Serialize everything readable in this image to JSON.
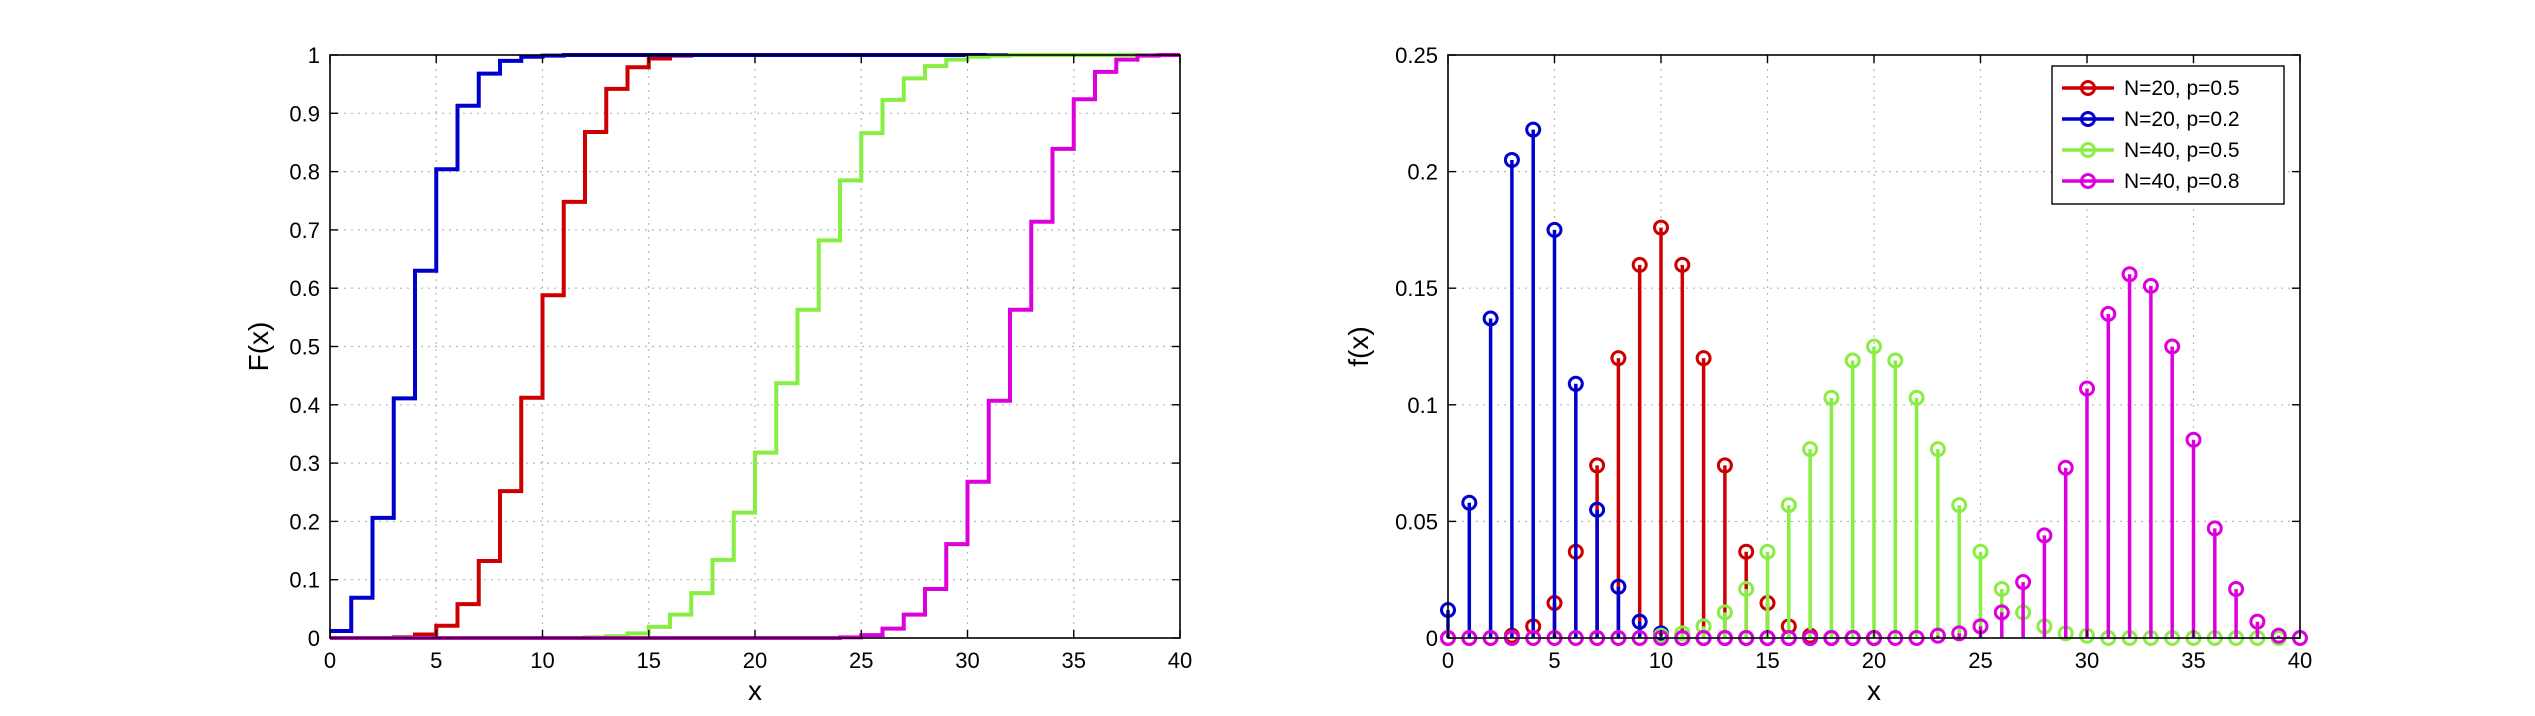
{
  "colors": {
    "red": "#cc0000",
    "blue": "#0000cc",
    "green": "#88ee44",
    "magenta": "#dd00dd"
  },
  "chart_data": [
    {
      "type": "line",
      "subtype": "step-cdf",
      "title": "",
      "xlabel": "x",
      "ylabel": "F(x)",
      "xlim": [
        0,
        40
      ],
      "ylim": [
        0,
        1
      ],
      "xticks": [
        0,
        5,
        10,
        15,
        20,
        25,
        30,
        35,
        40
      ],
      "yticks": [
        0,
        0.1,
        0.2,
        0.3,
        0.4,
        0.5,
        0.6,
        0.7,
        0.8,
        0.9,
        1
      ],
      "ytick_labels": [
        "0",
        "0.1",
        "0.2",
        "0.3",
        "0.4",
        "0.5",
        "0.6",
        "0.7",
        "0.8",
        "0.9",
        "1"
      ],
      "grid": true,
      "series": [
        {
          "color": "red",
          "x": [
            0,
            1,
            2,
            3,
            4,
            5,
            6,
            7,
            8,
            9,
            10,
            11,
            12,
            13,
            14,
            15,
            16,
            17,
            18,
            19,
            20
          ],
          "y": [
            0,
            0,
            0,
            0.001,
            0.006,
            0.021,
            0.058,
            0.132,
            0.252,
            0.412,
            0.588,
            0.748,
            0.868,
            0.942,
            0.979,
            0.994,
            0.999,
            1,
            1,
            1,
            1
          ]
        },
        {
          "color": "blue",
          "x": [
            0,
            1,
            2,
            3,
            4,
            5,
            6,
            7,
            8,
            9,
            10,
            11,
            12,
            13,
            14,
            15,
            16,
            17,
            18,
            19,
            20
          ],
          "y": [
            0.012,
            0.069,
            0.206,
            0.411,
            0.63,
            0.804,
            0.913,
            0.968,
            0.99,
            0.997,
            0.999,
            1,
            1,
            1,
            1,
            1,
            1,
            1,
            1,
            1,
            1
          ]
        },
        {
          "color": "green",
          "x": [
            0,
            1,
            2,
            3,
            4,
            5,
            6,
            7,
            8,
            9,
            10,
            11,
            12,
            13,
            14,
            15,
            16,
            17,
            18,
            19,
            20,
            21,
            22,
            23,
            24,
            25,
            26,
            27,
            28,
            29,
            30,
            31,
            32,
            33,
            34,
            35,
            36,
            37,
            38,
            39,
            40
          ],
          "y": [
            0,
            0,
            0,
            0,
            0,
            0,
            0,
            0,
            0,
            0,
            0,
            0,
            0.001,
            0.003,
            0.008,
            0.019,
            0.04,
            0.077,
            0.134,
            0.215,
            0.318,
            0.437,
            0.563,
            0.682,
            0.785,
            0.866,
            0.923,
            0.96,
            0.981,
            0.992,
            0.997,
            0.999,
            1,
            1,
            1,
            1,
            1,
            1,
            1,
            1,
            1
          ]
        },
        {
          "color": "magenta",
          "x": [
            0,
            1,
            2,
            3,
            4,
            5,
            6,
            7,
            8,
            9,
            10,
            11,
            12,
            13,
            14,
            15,
            16,
            17,
            18,
            19,
            20,
            21,
            22,
            23,
            24,
            25,
            26,
            27,
            28,
            29,
            30,
            31,
            32,
            33,
            34,
            35,
            36,
            37,
            38,
            39,
            40
          ],
          "y": [
            0,
            0,
            0,
            0,
            0,
            0,
            0,
            0,
            0,
            0,
            0,
            0,
            0,
            0,
            0,
            0,
            0,
            0,
            0,
            0,
            0,
            0,
            0,
            0,
            0.001,
            0.005,
            0.016,
            0.04,
            0.084,
            0.161,
            0.268,
            0.407,
            0.563,
            0.714,
            0.839,
            0.924,
            0.971,
            0.992,
            0.999,
            1,
            1
          ]
        }
      ]
    },
    {
      "type": "scatter",
      "subtype": "stem-pmf",
      "title": "",
      "xlabel": "x",
      "ylabel": "f(x)",
      "xlim": [
        0,
        40
      ],
      "ylim": [
        0,
        0.25
      ],
      "xticks": [
        0,
        5,
        10,
        15,
        20,
        25,
        30,
        35,
        40
      ],
      "yticks": [
        0,
        0.05,
        0.1,
        0.15,
        0.2,
        0.25
      ],
      "ytick_labels": [
        "0",
        "0.05",
        "0.1",
        "0.15",
        "0.2",
        "0.25"
      ],
      "grid": true,
      "legend": {
        "placement": "top-right"
      },
      "series": [
        {
          "name": "N=20, p=0.5",
          "color": "red",
          "x": [
            0,
            1,
            2,
            3,
            4,
            5,
            6,
            7,
            8,
            9,
            10,
            11,
            12,
            13,
            14,
            15,
            16,
            17,
            18,
            19,
            20
          ],
          "y": [
            0,
            0,
            0,
            0.001,
            0.005,
            0.015,
            0.037,
            0.074,
            0.12,
            0.16,
            0.176,
            0.16,
            0.12,
            0.074,
            0.037,
            0.015,
            0.005,
            0.001,
            0,
            0,
            0
          ]
        },
        {
          "name": "N=20, p=0.2",
          "color": "blue",
          "x": [
            0,
            1,
            2,
            3,
            4,
            5,
            6,
            7,
            8,
            9,
            10,
            11,
            12,
            13,
            14,
            15,
            16,
            17,
            18,
            19,
            20
          ],
          "y": [
            0.012,
            0.058,
            0.137,
            0.205,
            0.218,
            0.175,
            0.109,
            0.055,
            0.022,
            0.007,
            0.002,
            0,
            0,
            0,
            0,
            0,
            0,
            0,
            0,
            0,
            0
          ]
        },
        {
          "name": "N=40, p=0.5",
          "color": "green",
          "x": [
            0,
            1,
            2,
            3,
            4,
            5,
            6,
            7,
            8,
            9,
            10,
            11,
            12,
            13,
            14,
            15,
            16,
            17,
            18,
            19,
            20,
            21,
            22,
            23,
            24,
            25,
            26,
            27,
            28,
            29,
            30,
            31,
            32,
            33,
            34,
            35,
            36,
            37,
            38,
            39,
            40
          ],
          "y": [
            0,
            0,
            0,
            0,
            0,
            0,
            0,
            0,
            0,
            0,
            0.001,
            0.002,
            0.005,
            0.011,
            0.021,
            0.037,
            0.057,
            0.081,
            0.103,
            0.119,
            0.125,
            0.119,
            0.103,
            0.081,
            0.057,
            0.037,
            0.021,
            0.011,
            0.005,
            0.002,
            0.001,
            0,
            0,
            0,
            0,
            0,
            0,
            0,
            0,
            0,
            0
          ]
        },
        {
          "name": "N=40, p=0.8",
          "color": "magenta",
          "x": [
            0,
            1,
            2,
            3,
            4,
            5,
            6,
            7,
            8,
            9,
            10,
            11,
            12,
            13,
            14,
            15,
            16,
            17,
            18,
            19,
            20,
            21,
            22,
            23,
            24,
            25,
            26,
            27,
            28,
            29,
            30,
            31,
            32,
            33,
            34,
            35,
            36,
            37,
            38,
            39,
            40
          ],
          "y": [
            0,
            0,
            0,
            0,
            0,
            0,
            0,
            0,
            0,
            0,
            0,
            0,
            0,
            0,
            0,
            0,
            0,
            0,
            0,
            0,
            0,
            0,
            0,
            0.001,
            0.002,
            0.005,
            0.011,
            0.024,
            0.044,
            0.073,
            0.107,
            0.139,
            0.156,
            0.151,
            0.125,
            0.085,
            0.047,
            0.021,
            0.007,
            0.001,
            0
          ]
        }
      ]
    }
  ]
}
